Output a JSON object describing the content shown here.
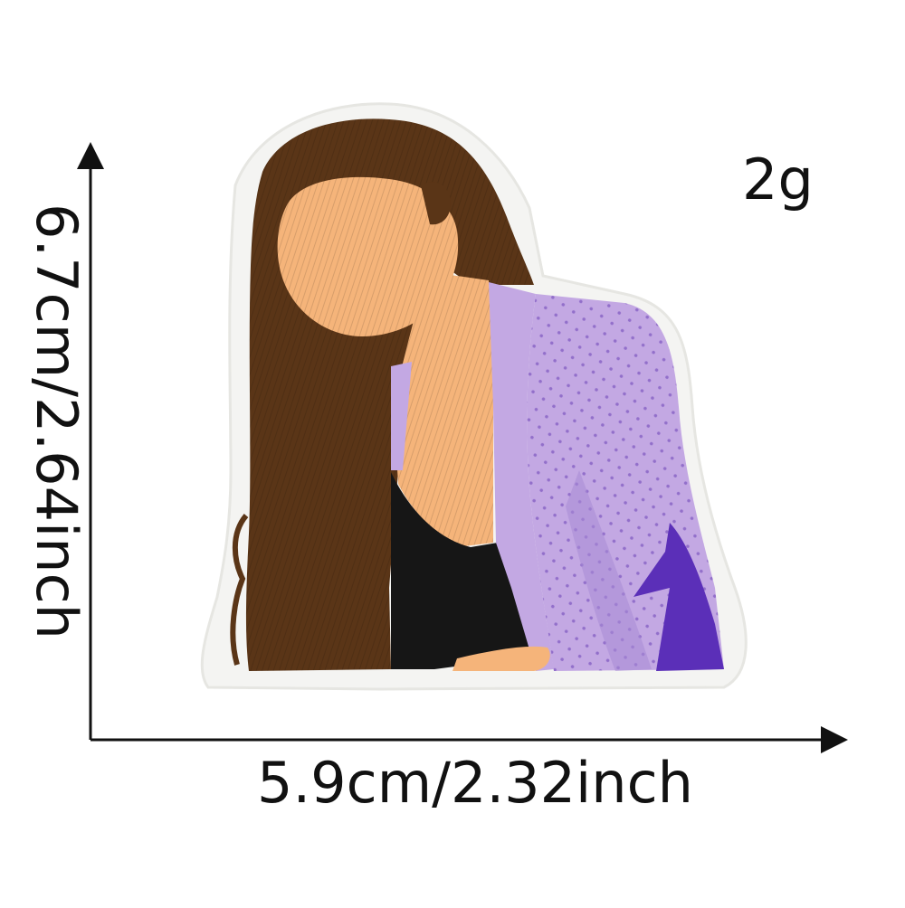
{
  "product": {
    "weight": "2g",
    "width_dimension": "5.9cm/2.32inch",
    "height_dimension": "6.7cm/2.64inch"
  },
  "colors": {
    "background": "#ffffff",
    "patch_border": "#f4f4f2",
    "hair": "#5a3517",
    "skin": "#f5b47a",
    "top": "#161616",
    "cardigan": "#c3a8e3",
    "cardigan_shadow": "#a88ad6",
    "accent": "#5b2fb8",
    "axis": "#111111"
  },
  "icons": {
    "patch": "embroidered-woman-patch",
    "axes": "dimension-arrows"
  }
}
